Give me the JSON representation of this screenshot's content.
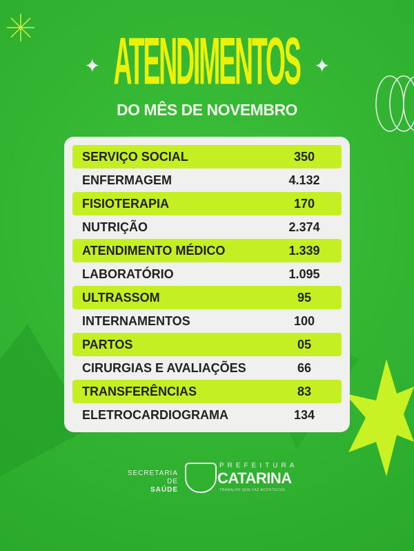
{
  "header": {
    "title": "ATENDIMENTOS",
    "subtitle": "DO MÊS DE NOVEMBRO"
  },
  "colors": {
    "background": "#2fb52f",
    "title": "#eaf20a",
    "highlight": "#c4ef22",
    "card": "#f0f0ee"
  },
  "rows": [
    {
      "label": "SERVIÇO SOCIAL",
      "value": "350"
    },
    {
      "label": "ENFERMAGEM",
      "value": "4.132"
    },
    {
      "label": "FISIOTERAPIA",
      "value": "170"
    },
    {
      "label": "NUTRIÇÃO",
      "value": "2.374"
    },
    {
      "label": "ATENDIMENTO MÉDICO",
      "value": "1.339"
    },
    {
      "label": "LABORATÓRIO",
      "value": "1.095"
    },
    {
      "label": "ULTRASSOM",
      "value": "95"
    },
    {
      "label": "INTERNAMENTOS",
      "value": "100"
    },
    {
      "label": "PARTOS",
      "value": "05"
    },
    {
      "label": "CIRURGIAS E AVALIAÇÕES",
      "value": "66"
    },
    {
      "label": "TRANSFERÊNCIAS",
      "value": "83"
    },
    {
      "label": "ELETROCARDIOGRAMA",
      "value": "134"
    }
  ],
  "footer": {
    "secretaria_line1": "SECRETARIA DE",
    "secretaria_line2": "SAÚDE",
    "prefeitura": "PREFEITURA",
    "city": "CATARINA",
    "tagline": "TRABALHO QUE FAZ ACONTECER"
  }
}
